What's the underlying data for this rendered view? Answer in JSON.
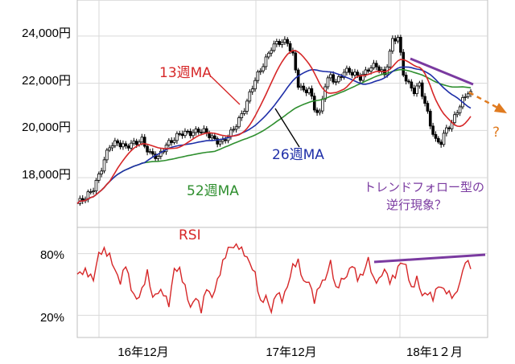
{
  "colors": {
    "ma13": "#d62728",
    "ma26": "#1f2fa8",
    "ma52": "#2f8f2f",
    "rsi": "#d62728",
    "trend": "#7a3aa0",
    "forecast": "#e07b20",
    "candle_up": "#ffffff",
    "candle_down": "#000000",
    "grid": "#d9d9d9"
  },
  "chart_data": [
    {
      "type": "line",
      "title": "",
      "y_ticks": [
        "18,000円",
        "20,000円",
        "22,000円",
        "24,000円"
      ],
      "y_tick_values": [
        18000,
        20000,
        22000,
        24000
      ],
      "ylim": [
        16200,
        25200
      ],
      "x_tick_labels": [
        "16年12月",
        "17年12月",
        "18年1２月"
      ],
      "grid": true,
      "price_anchors": [
        [
          0,
          16900
        ],
        [
          3,
          17100
        ],
        [
          6,
          17600
        ],
        [
          9,
          18400
        ],
        [
          12,
          19300
        ],
        [
          15,
          19550
        ],
        [
          18,
          19300
        ],
        [
          21,
          19400
        ],
        [
          24,
          19650
        ],
        [
          27,
          19000
        ],
        [
          30,
          18800
        ],
        [
          33,
          19450
        ],
        [
          36,
          19650
        ],
        [
          39,
          19850
        ],
        [
          42,
          19950
        ],
        [
          45,
          20000
        ],
        [
          48,
          19850
        ],
        [
          51,
          19650
        ],
        [
          54,
          19500
        ],
        [
          57,
          19850
        ],
        [
          60,
          20500
        ],
        [
          63,
          21200
        ],
        [
          66,
          22100
        ],
        [
          69,
          22850
        ],
        [
          72,
          23500
        ],
        [
          75,
          23700
        ],
        [
          78,
          23800
        ],
        [
          80,
          23200
        ],
        [
          82,
          21900
        ],
        [
          84,
          21600
        ],
        [
          86,
          21800
        ],
        [
          88,
          21000
        ],
        [
          90,
          20700
        ],
        [
          92,
          21900
        ],
        [
          94,
          22300
        ],
        [
          96,
          22100
        ],
        [
          99,
          22500
        ],
        [
          102,
          22400
        ],
        [
          105,
          22300
        ],
        [
          108,
          22600
        ],
        [
          111,
          22700
        ],
        [
          114,
          22400
        ],
        [
          117,
          23800
        ],
        [
          119,
          23900
        ],
        [
          121,
          22400
        ],
        [
          123,
          22000
        ],
        [
          125,
          21700
        ],
        [
          127,
          21900
        ],
        [
          129,
          21100
        ],
        [
          131,
          20300
        ],
        [
          133,
          19600
        ],
        [
          135,
          19500
        ],
        [
          137,
          20000
        ],
        [
          139,
          20300
        ],
        [
          141,
          20900
        ],
        [
          143,
          21300
        ],
        [
          145,
          21600
        ],
        [
          146,
          21500
        ]
      ],
      "series": [
        {
          "name": "13週MA",
          "values": [],
          "label_color": "#d62728"
        },
        {
          "name": "26週MA",
          "values": [],
          "label_color": "#1f2fa8"
        },
        {
          "name": "52週MA",
          "values": [],
          "label_color": "#2f8f2f"
        }
      ],
      "annotations": {
        "question": "?",
        "note_line1": "トレンドフォロー型の",
        "note_line2": "逆行現象？"
      }
    },
    {
      "type": "line",
      "title": "RSI",
      "y_ticks": [
        "80%",
        "20%"
      ],
      "y_tick_values": [
        80,
        20
      ],
      "ylim": [
        0,
        100
      ],
      "rsi_anchors": [
        [
          0,
          60
        ],
        [
          3,
          63
        ],
        [
          6,
          55
        ],
        [
          8,
          80
        ],
        [
          10,
          83
        ],
        [
          12,
          78
        ],
        [
          14,
          64
        ],
        [
          16,
          52
        ],
        [
          18,
          70
        ],
        [
          20,
          46
        ],
        [
          22,
          35
        ],
        [
          24,
          44
        ],
        [
          26,
          62
        ],
        [
          28,
          37
        ],
        [
          30,
          43
        ],
        [
          32,
          42
        ],
        [
          34,
          30
        ],
        [
          36,
          65
        ],
        [
          38,
          64
        ],
        [
          40,
          47
        ],
        [
          42,
          27
        ],
        [
          44,
          38
        ],
        [
          46,
          25
        ],
        [
          48,
          47
        ],
        [
          50,
          37
        ],
        [
          52,
          53
        ],
        [
          54,
          71
        ],
        [
          56,
          85
        ],
        [
          58,
          87
        ],
        [
          60,
          87
        ],
        [
          62,
          80
        ],
        [
          64,
          71
        ],
        [
          66,
          60
        ],
        [
          68,
          32
        ],
        [
          70,
          38
        ],
        [
          72,
          24
        ],
        [
          74,
          43
        ],
        [
          76,
          35
        ],
        [
          78,
          48
        ],
        [
          80,
          68
        ],
        [
          82,
          72
        ],
        [
          84,
          52
        ],
        [
          86,
          53
        ],
        [
          88,
          34
        ],
        [
          90,
          50
        ],
        [
          92,
          55
        ],
        [
          94,
          72
        ],
        [
          96,
          45
        ],
        [
          98,
          54
        ],
        [
          100,
          58
        ],
        [
          102,
          70
        ],
        [
          104,
          56
        ],
        [
          106,
          60
        ],
        [
          108,
          75
        ],
        [
          110,
          54
        ],
        [
          112,
          54
        ],
        [
          114,
          65
        ],
        [
          116,
          53
        ],
        [
          118,
          59
        ],
        [
          120,
          72
        ],
        [
          122,
          68
        ],
        [
          124,
          45
        ],
        [
          126,
          56
        ],
        [
          128,
          39
        ],
        [
          130,
          42
        ],
        [
          132,
          37
        ],
        [
          134,
          49
        ],
        [
          136,
          45
        ],
        [
          138,
          41
        ],
        [
          140,
          38
        ],
        [
          142,
          52
        ],
        [
          144,
          73
        ],
        [
          146,
          68
        ]
      ],
      "annotations": {
        "trend_line": true
      }
    }
  ]
}
